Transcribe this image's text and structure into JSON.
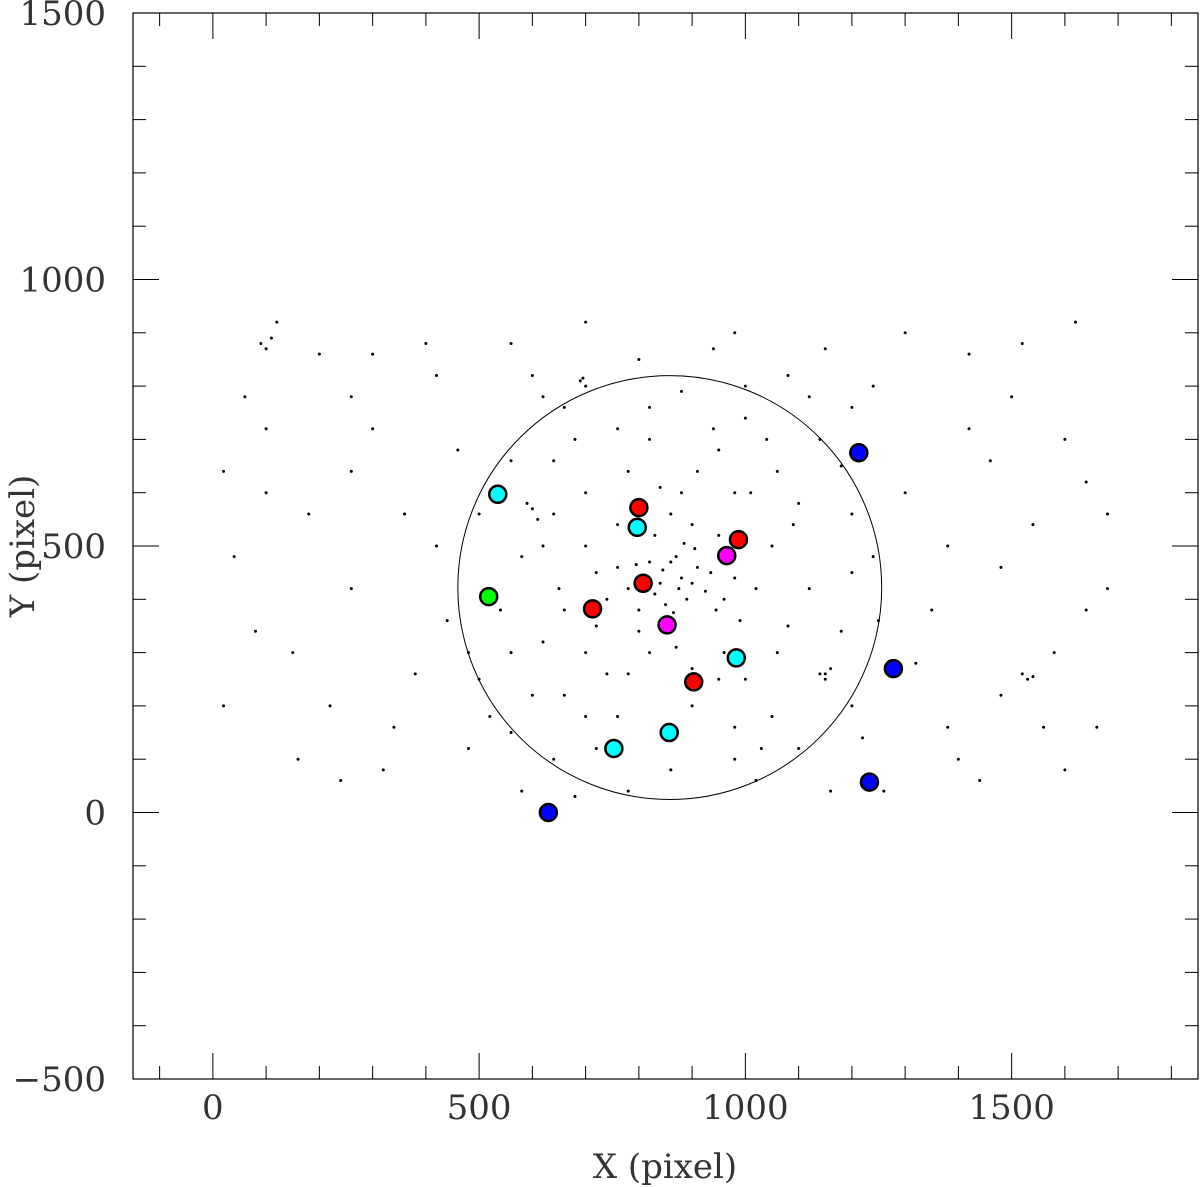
{
  "chart_data": {
    "type": "scatter",
    "xlabel": "X (pixel)",
    "ylabel": "Y (pixel)",
    "xlim": [
      -150,
      1850
    ],
    "ylim": [
      -500,
      1500
    ],
    "x_ticks": [
      0,
      500,
      1000,
      1500
    ],
    "y_ticks": [
      -500,
      0,
      500,
      1000,
      1500
    ],
    "x_tick_labels": [
      "0",
      "500",
      "1000",
      "1500"
    ],
    "y_tick_labels": [
      "−500",
      "0",
      "500",
      "1000",
      "1500"
    ],
    "x_minor_step": 100,
    "y_minor_step": 100,
    "grid": false,
    "circle": {
      "cx": 858,
      "cy": 422,
      "r": 398,
      "color": "#000000"
    },
    "background_stars": {
      "color": "#000000",
      "points": [
        [
          860,
          470
        ],
        [
          845,
          455
        ],
        [
          880,
          440
        ],
        [
          870,
          480
        ],
        [
          900,
          430
        ],
        [
          830,
          410
        ],
        [
          890,
          400
        ],
        [
          850,
          390
        ],
        [
          910,
          460
        ],
        [
          820,
          470
        ],
        [
          875,
          420
        ],
        [
          840,
          430
        ],
        [
          905,
          495
        ],
        [
          815,
          440
        ],
        [
          865,
          375
        ],
        [
          925,
          415
        ],
        [
          795,
          465
        ],
        [
          885,
          505
        ],
        [
          855,
          350
        ],
        [
          935,
          450
        ],
        [
          780,
          420
        ],
        [
          960,
          400
        ],
        [
          800,
          380
        ],
        [
          945,
          380
        ],
        [
          830,
          520
        ],
        [
          980,
          440
        ],
        [
          760,
          460
        ],
        [
          900,
          540
        ],
        [
          870,
          310
        ],
        [
          740,
          400
        ],
        [
          990,
          360
        ],
        [
          950,
          520
        ],
        [
          720,
          350
        ],
        [
          820,
          300
        ],
        [
          1020,
          420
        ],
        [
          700,
          500
        ],
        [
          880,
          600
        ],
        [
          960,
          300
        ],
        [
          650,
          420
        ],
        [
          1050,
          500
        ],
        [
          780,
          260
        ],
        [
          1000,
          250
        ],
        [
          620,
          320
        ],
        [
          1080,
          350
        ],
        [
          700,
          600
        ],
        [
          900,
          200
        ],
        [
          580,
          480
        ],
        [
          1100,
          580
        ],
        [
          760,
          180
        ],
        [
          1150,
          260
        ],
        [
          540,
          380
        ],
        [
          950,
          680
        ],
        [
          600,
          220
        ],
        [
          1200,
          450
        ],
        [
          680,
          700
        ],
        [
          1050,
          180
        ],
        [
          500,
          560
        ],
        [
          820,
          760
        ],
        [
          1000,
          740
        ],
        [
          480,
          300
        ],
        [
          620,
          780
        ],
        [
          1180,
          650
        ],
        [
          720,
          120
        ],
        [
          1100,
          120
        ],
        [
          520,
          180
        ],
        [
          980,
          100
        ],
        [
          880,
          790
        ],
        [
          640,
          100
        ],
        [
          1250,
          360
        ],
        [
          460,
          680
        ],
        [
          780,
          40
        ],
        [
          1220,
          140
        ],
        [
          420,
          500
        ],
        [
          1300,
          600
        ],
        [
          380,
          260
        ],
        [
          1350,
          380
        ],
        [
          300,
          720
        ],
        [
          1420,
          720
        ],
        [
          260,
          420
        ],
        [
          1480,
          460
        ],
        [
          200,
          860
        ],
        [
          1520,
          880
        ],
        [
          150,
          300
        ],
        [
          1580,
          300
        ],
        [
          100,
          600
        ],
        [
          1640,
          620
        ],
        [
          60,
          780
        ],
        [
          1660,
          160
        ],
        [
          20,
          200
        ],
        [
          1600,
          80
        ],
        [
          340,
          160
        ],
        [
          1380,
          160
        ],
        [
          240,
          60
        ],
        [
          1440,
          60
        ],
        [
          400,
          880
        ],
        [
          1300,
          900
        ],
        [
          560,
          880
        ],
        [
          1150,
          870
        ],
        [
          700,
          920
        ],
        [
          980,
          900
        ],
        [
          300,
          860
        ],
        [
          1420,
          860
        ],
        [
          120,
          920
        ],
        [
          1620,
          920
        ],
        [
          180,
          560
        ],
        [
          1540,
          540
        ],
        [
          260,
          640
        ],
        [
          1460,
          660
        ],
        [
          360,
          560
        ],
        [
          1380,
          500
        ],
        [
          440,
          360
        ],
        [
          1320,
          280
        ],
        [
          560,
          660
        ],
        [
          1200,
          760
        ],
        [
          660,
          220
        ],
        [
          1060,
          640
        ],
        [
          160,
          100
        ],
        [
          1560,
          160
        ],
        [
          40,
          480
        ],
        [
          1680,
          420
        ],
        [
          80,
          340
        ],
        [
          1640,
          380
        ],
        [
          220,
          200
        ],
        [
          1480,
          220
        ],
        [
          320,
          80
        ],
        [
          1400,
          100
        ],
        [
          480,
          120
        ],
        [
          1260,
          40
        ],
        [
          580,
          40
        ],
        [
          1160,
          40
        ],
        [
          680,
          30
        ],
        [
          1020,
          60
        ],
        [
          800,
          850
        ],
        [
          940,
          870
        ],
        [
          600,
          820
        ],
        [
          1080,
          820
        ],
        [
          420,
          820
        ],
        [
          1240,
          800
        ],
        [
          260,
          780
        ],
        [
          1500,
          780
        ],
        [
          100,
          720
        ],
        [
          1600,
          700
        ],
        [
          20,
          640
        ],
        [
          1680,
          560
        ],
        [
          640,
          560
        ],
        [
          590,
          580
        ],
        [
          600,
          570
        ],
        [
          610,
          550
        ],
        [
          695,
          815
        ],
        [
          700,
          800
        ],
        [
          690,
          810
        ],
        [
          1520,
          260
        ],
        [
          1530,
          250
        ],
        [
          1540,
          255
        ],
        [
          1150,
          250
        ],
        [
          1160,
          270
        ],
        [
          1140,
          260
        ],
        [
          90,
          880
        ],
        [
          100,
          870
        ],
        [
          110,
          890
        ],
        [
          980,
          600
        ],
        [
          760,
          540
        ],
        [
          910,
          640
        ],
        [
          860,
          560
        ],
        [
          800,
          340
        ],
        [
          950,
          250
        ],
        [
          700,
          300
        ],
        [
          1000,
          520
        ],
        [
          720,
          450
        ],
        [
          840,
          610
        ],
        [
          1060,
          300
        ],
        [
          1010,
          600
        ],
        [
          780,
          640
        ],
        [
          900,
          270
        ],
        [
          660,
          380
        ],
        [
          1120,
          420
        ],
        [
          870,
          150
        ],
        [
          620,
          500
        ],
        [
          1090,
          540
        ],
        [
          740,
          260
        ],
        [
          980,
          160
        ],
        [
          560,
          300
        ],
        [
          1180,
          340
        ],
        [
          820,
          700
        ],
        [
          760,
          720
        ],
        [
          940,
          720
        ],
        [
          1040,
          700
        ],
        [
          700,
          180
        ],
        [
          1030,
          120
        ],
        [
          520,
          420
        ],
        [
          1200,
          200
        ],
        [
          640,
          660
        ],
        [
          1140,
          700
        ],
        [
          860,
          80
        ],
        [
          560,
          150
        ],
        [
          1200,
          560
        ],
        [
          500,
          250
        ],
        [
          1240,
          480
        ],
        [
          660,
          760
        ],
        [
          1000,
          800
        ],
        [
          1120,
          780
        ]
      ]
    },
    "highlighted_stars": [
      {
        "x": 535,
        "y": 597,
        "color": "#00ffff"
      },
      {
        "x": 797,
        "y": 535,
        "color": "#00ffff"
      },
      {
        "x": 983,
        "y": 290,
        "color": "#00ffff"
      },
      {
        "x": 857,
        "y": 150,
        "color": "#00ffff"
      },
      {
        "x": 753,
        "y": 120,
        "color": "#00ffff"
      },
      {
        "x": 800,
        "y": 572,
        "color": "#ff0000"
      },
      {
        "x": 987,
        "y": 512,
        "color": "#ff0000"
      },
      {
        "x": 808,
        "y": 430,
        "color": "#ff0000"
      },
      {
        "x": 713,
        "y": 382,
        "color": "#ff0000"
      },
      {
        "x": 903,
        "y": 245,
        "color": "#ff0000"
      },
      {
        "x": 965,
        "y": 482,
        "color": "#ff00ff"
      },
      {
        "x": 853,
        "y": 352,
        "color": "#ff00ff"
      },
      {
        "x": 518,
        "y": 405,
        "color": "#00ff00"
      },
      {
        "x": 1213,
        "y": 675,
        "color": "#0000ff"
      },
      {
        "x": 1278,
        "y": 270,
        "color": "#0000ff"
      },
      {
        "x": 1233,
        "y": 57,
        "color": "#0000ff"
      },
      {
        "x": 630,
        "y": 0,
        "color": "#0000ff"
      }
    ]
  }
}
